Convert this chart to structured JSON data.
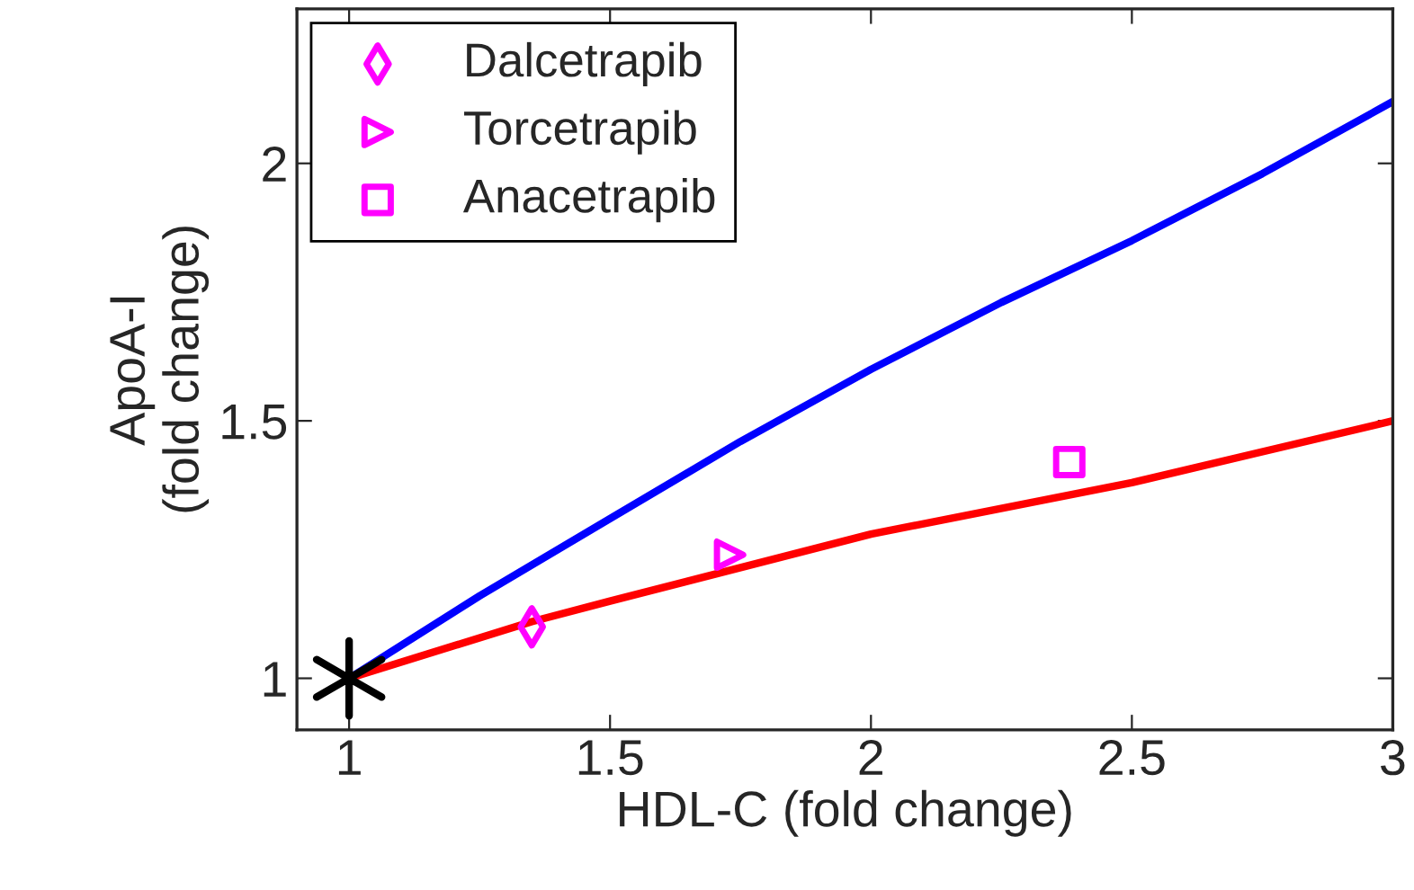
{
  "chart_data": {
    "type": "line",
    "xlabel": "HDL-C (fold change)",
    "ylabel": "ApoA-I\n(fold change)",
    "xlim": [
      0.9,
      3
    ],
    "ylim": [
      0.9,
      2.3
    ],
    "xticks": [
      1,
      1.5,
      2,
      2.5,
      3
    ],
    "yticks": [
      1,
      1.5,
      2
    ],
    "grid": false,
    "legend": "top left",
    "series": [
      {
        "color": "#0000ff",
        "x": [
          1,
          1.25,
          1.5,
          1.75,
          2,
          2.25,
          2.5,
          2.75,
          3
        ],
        "values": [
          1,
          1.16,
          1.31,
          1.46,
          1.6,
          1.73,
          1.85,
          1.98,
          2.12
        ],
        "marker": "none"
      },
      {
        "color": "#ff0000",
        "x": [
          1,
          1.35,
          1.5,
          2,
          2.5,
          3
        ],
        "values": [
          1,
          1.11,
          1.15,
          1.28,
          1.38,
          1.5
        ],
        "marker": "none"
      },
      {
        "type": "scatter",
        "name": "Dalcetrapib",
        "color": "#ff00ff",
        "x": [
          1.35
        ],
        "values": [
          1.1
        ],
        "marker": "diamond"
      },
      {
        "type": "scatter",
        "name": "Torcetrapib",
        "color": "#ff00ff",
        "x": [
          1.73
        ],
        "values": [
          1.24
        ],
        "marker": "triangle"
      },
      {
        "type": "scatter",
        "name": "Anacetrapib",
        "color": "#ff00ff",
        "x": [
          2.38
        ],
        "values": [
          1.42
        ],
        "marker": "square"
      },
      {
        "type": "scatter",
        "color": "#000000",
        "x": [
          1
        ],
        "values": [
          1
        ],
        "marker": "cross"
      }
    ]
  }
}
